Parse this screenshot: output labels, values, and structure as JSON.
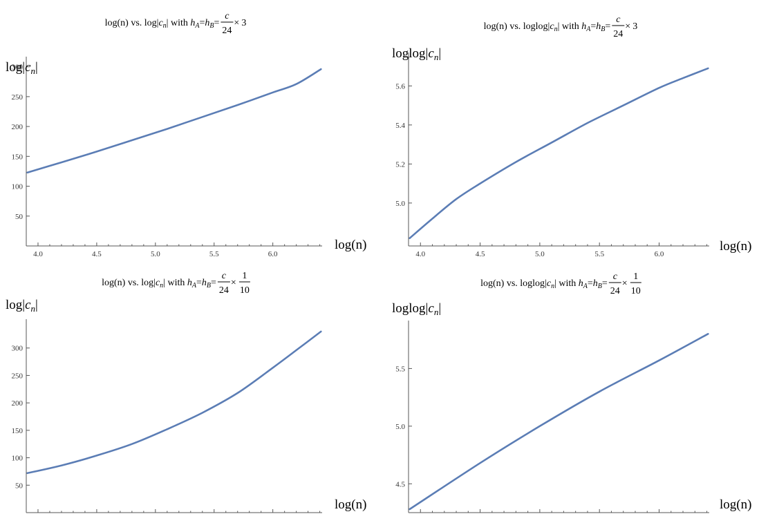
{
  "chart_data": [
    {
      "type": "line",
      "title_prefix": "log(n) vs. log|",
      "title_var": "c",
      "title_sub": "n",
      "title_mid": "| with ",
      "title_h": "h",
      "title_hA_sub": "A",
      "title_eq1": "=",
      "title_hB_sub": "B",
      "title_eq2": "=",
      "frac_num": "c",
      "frac_den": "24",
      "frac_times": "×",
      "frac_tail": "3",
      "ylabel_prefix": "log|",
      "ylabel_var": "c",
      "ylabel_sub": "n",
      "ylabel_suffix": "|",
      "xlabel": "log(n)",
      "xlim": [
        3.9,
        6.42
      ],
      "ylim": [
        0,
        310
      ],
      "xticks": [
        4.0,
        4.5,
        5.0,
        5.5,
        6.0
      ],
      "xtick_labels": [
        "4.0",
        "4.5",
        "5.0",
        "5.5",
        "6.0"
      ],
      "yticks": [
        50,
        100,
        150,
        200,
        250,
        300
      ],
      "ytick_labels": [
        "50",
        "100",
        "150",
        "200",
        "250",
        "300"
      ],
      "x": [
        3.91,
        4.2,
        4.5,
        4.8,
        5.1,
        5.4,
        5.7,
        6.0,
        6.2,
        6.41
      ],
      "y": [
        123,
        140,
        158,
        177,
        196,
        216,
        236,
        257,
        271,
        296
      ]
    },
    {
      "type": "line",
      "title_prefix": "log(n) vs. loglog|",
      "title_var": "c",
      "title_sub": "n",
      "title_mid": "| with ",
      "title_h": "h",
      "title_hA_sub": "A",
      "title_eq1": "=",
      "title_hB_sub": "B",
      "title_eq2": "=",
      "frac_num": "c",
      "frac_den": "24",
      "frac_times": "×",
      "frac_tail": "3",
      "ylabel_prefix": "loglog|",
      "ylabel_var": "c",
      "ylabel_sub": "n",
      "ylabel_suffix": "|",
      "xlabel": "log(n)",
      "xlim": [
        3.9,
        6.42
      ],
      "ylim": [
        4.78,
        5.75
      ],
      "xticks": [
        4.0,
        4.5,
        5.0,
        5.5,
        6.0
      ],
      "xtick_labels": [
        "4.0",
        "4.5",
        "5.0",
        "5.5",
        "6.0"
      ],
      "yticks": [
        5.0,
        5.2,
        5.4,
        5.6
      ],
      "ytick_labels": [
        "5.0",
        "5.2",
        "5.4",
        "5.6"
      ],
      "x": [
        3.91,
        4.1,
        4.3,
        4.5,
        4.8,
        5.1,
        5.4,
        5.7,
        6.0,
        6.2,
        6.41
      ],
      "y": [
        4.82,
        4.92,
        5.02,
        5.1,
        5.21,
        5.31,
        5.41,
        5.5,
        5.59,
        5.64,
        5.69
      ]
    },
    {
      "type": "line",
      "title_prefix": "log(n) vs. log|",
      "title_var": "c",
      "title_sub": "n",
      "title_mid": "| with ",
      "title_h": "h",
      "title_hA_sub": "A",
      "title_eq1": "=",
      "title_hB_sub": "B",
      "title_eq2": "=",
      "frac_num": "c",
      "frac_den": "24",
      "frac_times": "×",
      "frac2_num": "1",
      "frac2_den": "10",
      "ylabel_prefix": "log|",
      "ylabel_var": "c",
      "ylabel_sub": "n",
      "ylabel_suffix": "|",
      "xlabel": "log(n)",
      "xlim": [
        3.9,
        6.42
      ],
      "ylim": [
        0,
        345
      ],
      "xticks": [
        4.0,
        4.5,
        5.0,
        5.5,
        6.0
      ],
      "xtick_labels": [
        "4.0",
        "4.5",
        "5.0",
        "5.5",
        "6.0"
      ],
      "yticks": [
        50,
        100,
        150,
        200,
        250,
        300
      ],
      "ytick_labels": [
        "50",
        "100",
        "150",
        "200",
        "250",
        "300"
      ],
      "x": [
        3.91,
        4.2,
        4.5,
        4.8,
        5.1,
        5.4,
        5.7,
        6.0,
        6.2,
        6.41
      ],
      "y": [
        72,
        86,
        104,
        125,
        152,
        182,
        218,
        264,
        296,
        330
      ]
    },
    {
      "type": "line",
      "title_prefix": "log(n) vs. loglog|",
      "title_var": "c",
      "title_sub": "n",
      "title_mid": "| with ",
      "title_h": "h",
      "title_hA_sub": "A",
      "title_eq1": "=",
      "title_hB_sub": "B",
      "title_eq2": "=",
      "frac_num": "c",
      "frac_den": "24",
      "frac_times": "×",
      "frac2_num": "1",
      "frac2_den": "10",
      "ylabel_prefix": "loglog|",
      "ylabel_var": "c",
      "ylabel_sub": "n",
      "ylabel_suffix": "|",
      "xlabel": "log(n)",
      "xlim": [
        3.9,
        6.42
      ],
      "ylim": [
        4.25,
        5.88
      ],
      "xticks": [
        4.0,
        4.5,
        5.0,
        5.5,
        6.0
      ],
      "xtick_labels": [
        "4.0",
        "4.5",
        "5.0",
        "5.5",
        "6.0"
      ],
      "yticks": [
        4.5,
        5.0,
        5.5
      ],
      "ytick_labels": [
        "4.5",
        "5.0",
        "5.5"
      ],
      "x": [
        3.91,
        4.5,
        5.0,
        5.5,
        6.0,
        6.41
      ],
      "y": [
        4.28,
        4.68,
        5.0,
        5.3,
        5.57,
        5.8
      ]
    }
  ],
  "colors": {
    "series": "#5b7db5",
    "axis": "#555555"
  }
}
